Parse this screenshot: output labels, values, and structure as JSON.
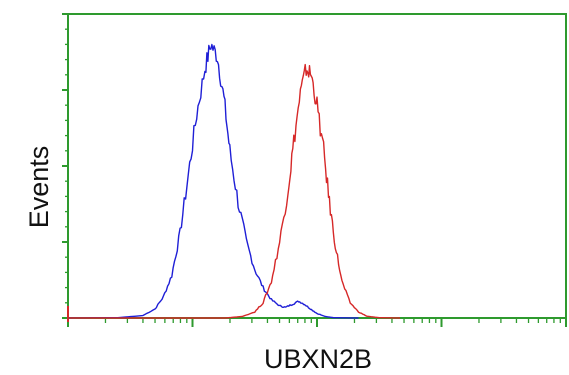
{
  "chart_data": {
    "type": "line",
    "title": "",
    "xlabel": "UBXN2B",
    "ylabel": "Events",
    "x_scale": "log",
    "grid": false,
    "legend": "none",
    "axis_color": "#2e9a2e",
    "series": [
      {
        "color": "#1f1fd6",
        "points": [
          [
            0,
            0
          ],
          [
            0.6,
            0.1
          ],
          [
            0.9,
            0.8
          ],
          [
            1.05,
            3
          ],
          [
            1.15,
            7
          ],
          [
            1.25,
            14
          ],
          [
            1.35,
            28
          ],
          [
            1.45,
            47
          ],
          [
            1.55,
            67
          ],
          [
            1.65,
            82
          ],
          [
            1.72,
            90
          ],
          [
            1.8,
            86
          ],
          [
            1.88,
            72
          ],
          [
            1.95,
            55
          ],
          [
            2.05,
            38
          ],
          [
            2.15,
            25
          ],
          [
            2.25,
            16
          ],
          [
            2.35,
            10
          ],
          [
            2.45,
            6
          ],
          [
            2.55,
            4
          ],
          [
            2.62,
            3.5
          ],
          [
            2.7,
            4.5
          ],
          [
            2.78,
            5.5
          ],
          [
            2.85,
            4.5
          ],
          [
            2.92,
            3
          ],
          [
            3.0,
            1.5
          ],
          [
            3.1,
            0.5
          ],
          [
            3.2,
            0.1
          ],
          [
            3.5,
            0
          ]
        ]
      },
      {
        "color": "#d62828",
        "points": [
          [
            0,
            0
          ],
          [
            1.9,
            0
          ],
          [
            2.1,
            0.5
          ],
          [
            2.25,
            2
          ],
          [
            2.35,
            5
          ],
          [
            2.45,
            12
          ],
          [
            2.55,
            25
          ],
          [
            2.65,
            42
          ],
          [
            2.72,
            58
          ],
          [
            2.8,
            74
          ],
          [
            2.87,
            82
          ],
          [
            2.93,
            80
          ],
          [
            3.0,
            70
          ],
          [
            3.08,
            55
          ],
          [
            3.15,
            38
          ],
          [
            3.22,
            24
          ],
          [
            3.3,
            12
          ],
          [
            3.4,
            5
          ],
          [
            3.5,
            2
          ],
          [
            3.6,
            0.6
          ],
          [
            3.75,
            0.1
          ],
          [
            4.0,
            0
          ]
        ]
      }
    ],
    "xlim": [
      0,
      6
    ],
    "ylim": [
      0,
      100
    ]
  }
}
